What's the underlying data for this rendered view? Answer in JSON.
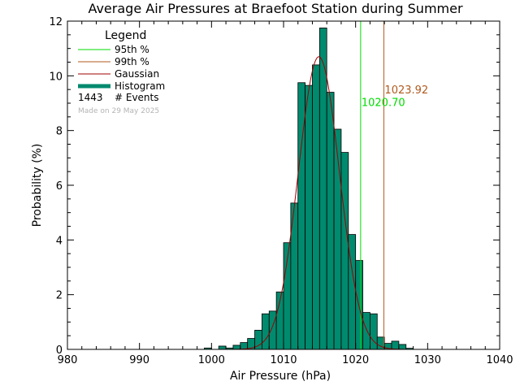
{
  "chart_data": {
    "type": "bar",
    "title": "Average Air Pressures at Braefoot Station during Summer",
    "xlabel": "Air Pressure (hPa)",
    "ylabel": "Probability (%)",
    "xlim": [
      980,
      1040
    ],
    "ylim": [
      0,
      12
    ],
    "x_ticks": [
      "980",
      "990",
      "1000",
      "1010",
      "1020",
      "1030",
      "1040"
    ],
    "y_ticks": [
      "0",
      "2",
      "4",
      "6",
      "8",
      "10",
      "12"
    ],
    "grid": false,
    "bin_width": 1,
    "histogram": {
      "name": "Histogram",
      "bins": [
        {
          "x": 999.5,
          "value": 0.05
        },
        {
          "x": 1001.5,
          "value": 0.12
        },
        {
          "x": 1002.5,
          "value": 0.05
        },
        {
          "x": 1003.5,
          "value": 0.15
        },
        {
          "x": 1004.5,
          "value": 0.25
        },
        {
          "x": 1005.5,
          "value": 0.4
        },
        {
          "x": 1006.5,
          "value": 0.7
        },
        {
          "x": 1007.5,
          "value": 1.3
        },
        {
          "x": 1008.5,
          "value": 1.4
        },
        {
          "x": 1009.5,
          "value": 2.1
        },
        {
          "x": 1010.5,
          "value": 3.9
        },
        {
          "x": 1011.5,
          "value": 5.35
        },
        {
          "x": 1012.5,
          "value": 9.75
        },
        {
          "x": 1013.5,
          "value": 9.65
        },
        {
          "x": 1014.5,
          "value": 10.4
        },
        {
          "x": 1015.5,
          "value": 11.75
        },
        {
          "x": 1016.5,
          "value": 9.4
        },
        {
          "x": 1017.5,
          "value": 8.05
        },
        {
          "x": 1018.5,
          "value": 7.2
        },
        {
          "x": 1019.5,
          "value": 4.2
        },
        {
          "x": 1020.5,
          "value": 3.25
        },
        {
          "x": 1021.5,
          "value": 1.35
        },
        {
          "x": 1022.5,
          "value": 1.3
        },
        {
          "x": 1023.5,
          "value": 0.45
        },
        {
          "x": 1024.5,
          "value": 0.22
        },
        {
          "x": 1025.5,
          "value": 0.3
        },
        {
          "x": 1026.5,
          "value": 0.18
        },
        {
          "x": 1027.5,
          "value": 0.04
        }
      ]
    },
    "gaussian": {
      "name": "Gaussian",
      "mean": 1014.9,
      "sigma": 2.85,
      "peak": 10.7,
      "x_range": [
        998,
        1029
      ]
    },
    "percentile_lines": [
      {
        "name": "95th %",
        "x": 1020.7,
        "label": "1020.70",
        "color": "#00dd00",
        "label_y": 8.9
      },
      {
        "name": "99th %",
        "x": 1023.92,
        "label": "1023.92",
        "color": "#b05a1e",
        "label_y": 9.35
      }
    ],
    "legend": {
      "title": "Legend",
      "placement": "top-left",
      "events_count": "1443",
      "events_label": "# Events",
      "made_on": "Made on 29 May 2025"
    },
    "colors": {
      "histogram_fill": "#008a6e",
      "histogram_edge": "#000000",
      "gaussian": "#a00000",
      "line_95": "#00dd00",
      "line_99": "#b05a1e"
    }
  }
}
